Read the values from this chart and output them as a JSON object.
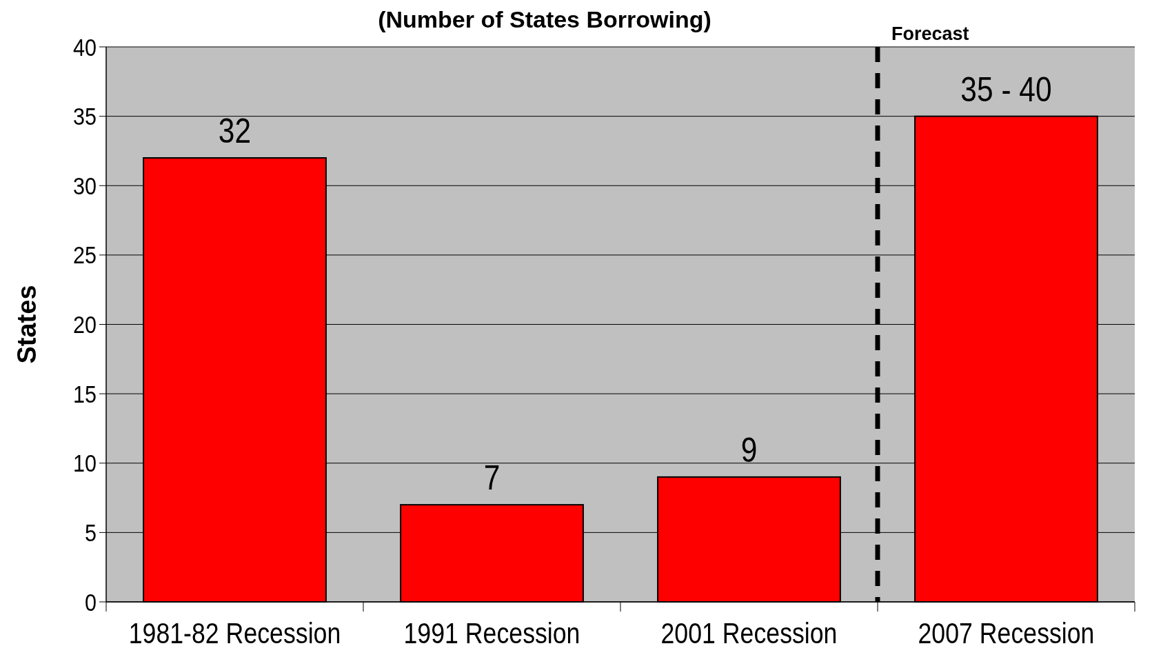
{
  "chart_data": {
    "type": "bar",
    "title": "(Number of States Borrowing)",
    "ylabel": "States",
    "categories": [
      "1981-82 Recession",
      "1991 Recession",
      "2001 Recession",
      "2007 Recession"
    ],
    "values": [
      32,
      7,
      9,
      35
    ],
    "color": "#ff0000",
    "value_labels": [
      "32",
      "7",
      "9",
      "35 - 40"
    ],
    "ylim": [
      0,
      40
    ],
    "yticks": [
      0,
      5,
      10,
      15,
      20,
      25,
      30,
      35,
      40
    ],
    "grid": "y",
    "annotations": [
      "Forecast"
    ]
  }
}
